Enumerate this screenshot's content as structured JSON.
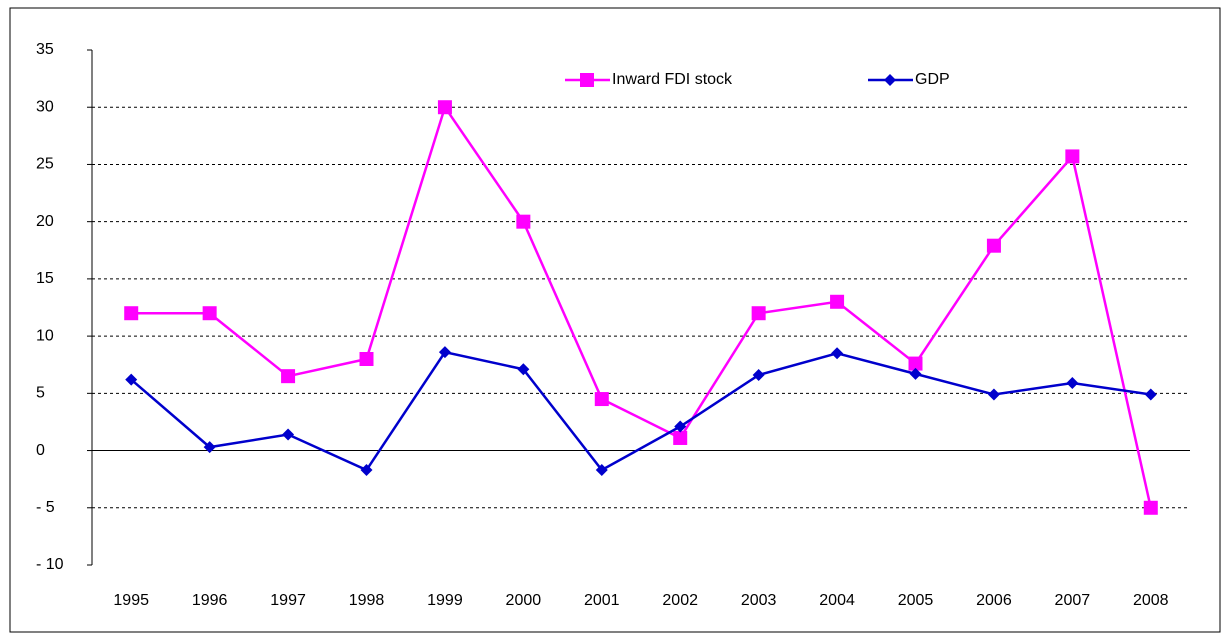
{
  "chart_data": {
    "type": "line",
    "categories": [
      "1995",
      "1996",
      "1997",
      "1998",
      "1999",
      "2000",
      "2001",
      "2002",
      "2003",
      "2004",
      "2005",
      "2006",
      "2007",
      "2008"
    ],
    "series": [
      {
        "name": "Inward FDI stock",
        "color": "#ff00ff",
        "marker": "square",
        "values": [
          12,
          12,
          6.5,
          8,
          30,
          20,
          4.5,
          1.1,
          12,
          13,
          7.6,
          17.9,
          25.7,
          -5
        ]
      },
      {
        "name": "GDP",
        "color": "#0000cc",
        "marker": "diamond",
        "values": [
          6.2,
          0.3,
          1.4,
          -1.7,
          8.6,
          7.1,
          -1.7,
          2.1,
          6.6,
          8.5,
          6.7,
          4.9,
          5.9,
          4.9
        ]
      }
    ],
    "ylim": [
      -10,
      35
    ],
    "yticks": [
      {
        "value": -10,
        "label": "- 10"
      },
      {
        "value": -5,
        "label": "- 5"
      },
      0,
      5,
      10,
      15,
      20,
      25,
      30,
      35
    ],
    "grid": true,
    "legend": "top"
  }
}
